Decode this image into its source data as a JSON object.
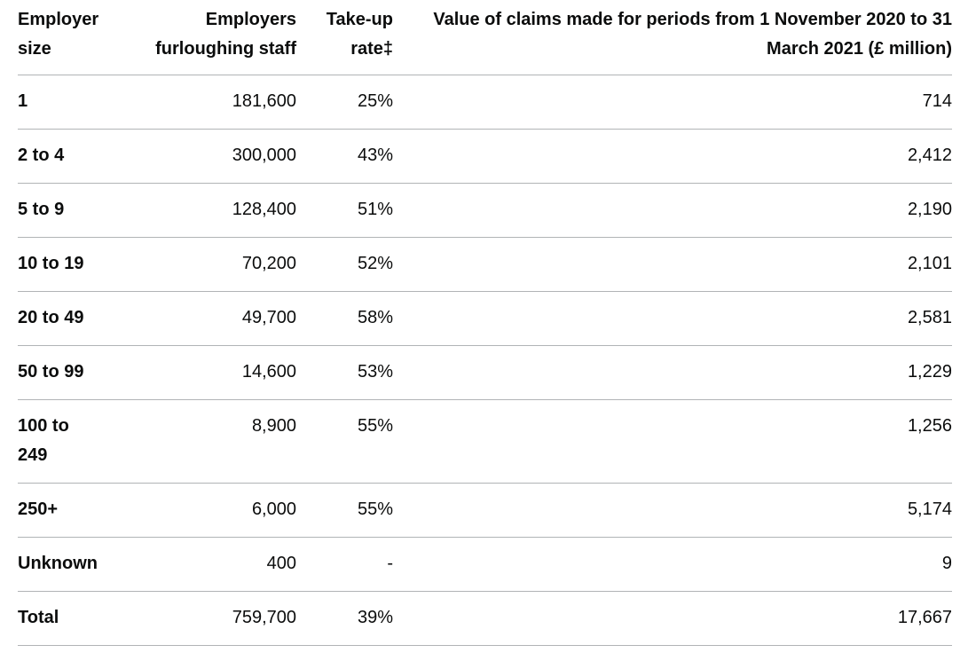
{
  "colors": {
    "text": "#0b0c0c",
    "border": "#b1b4b6",
    "background": "#ffffff"
  },
  "table": {
    "header": [
      "Employer size",
      "Employers furloughing staff",
      "Take-up rate‡",
      "Value of claims made for periods from 1 November 2020 to 31 March 2021 (£ million)"
    ],
    "rows": [
      [
        "1",
        "181,600",
        "25%",
        "714"
      ],
      [
        "2 to 4",
        "300,000",
        "43%",
        "2,412"
      ],
      [
        "5 to 9",
        "128,400",
        "51%",
        "2,190"
      ],
      [
        "10 to 19",
        "70,200",
        "52%",
        "2,101"
      ],
      [
        "20 to 49",
        "49,700",
        "58%",
        "2,581"
      ],
      [
        "50 to 99",
        "14,600",
        "53%",
        "1,229"
      ],
      [
        "100 to 249",
        "8,900",
        "55%",
        "1,256"
      ],
      [
        "250+",
        "6,000",
        "55%",
        "5,174"
      ],
      [
        "Unknown",
        "400",
        "-",
        "9"
      ],
      [
        "Total",
        "759,700",
        "39%",
        "17,667"
      ]
    ]
  },
  "chart_data": {
    "type": "table",
    "columns": [
      "Employer size",
      "Employers furloughing staff",
      "Take-up rate‡",
      "Value of claims made for periods from 1 November 2020 to 31 March 2021 (£ million)"
    ],
    "rows": [
      [
        "1",
        181600,
        "25%",
        714
      ],
      [
        "2 to 4",
        300000,
        "43%",
        2412
      ],
      [
        "5 to 9",
        128400,
        "51%",
        2190
      ],
      [
        "10 to 19",
        70200,
        "52%",
        2101
      ],
      [
        "20 to 49",
        49700,
        "58%",
        2581
      ],
      [
        "50 to 99",
        14600,
        "53%",
        1229
      ],
      [
        "100 to 249",
        8900,
        "55%",
        1256
      ],
      [
        "250+",
        6000,
        "55%",
        5174
      ],
      [
        "Unknown",
        400,
        null,
        9
      ],
      [
        "Total",
        759700,
        "39%",
        17667
      ]
    ]
  }
}
